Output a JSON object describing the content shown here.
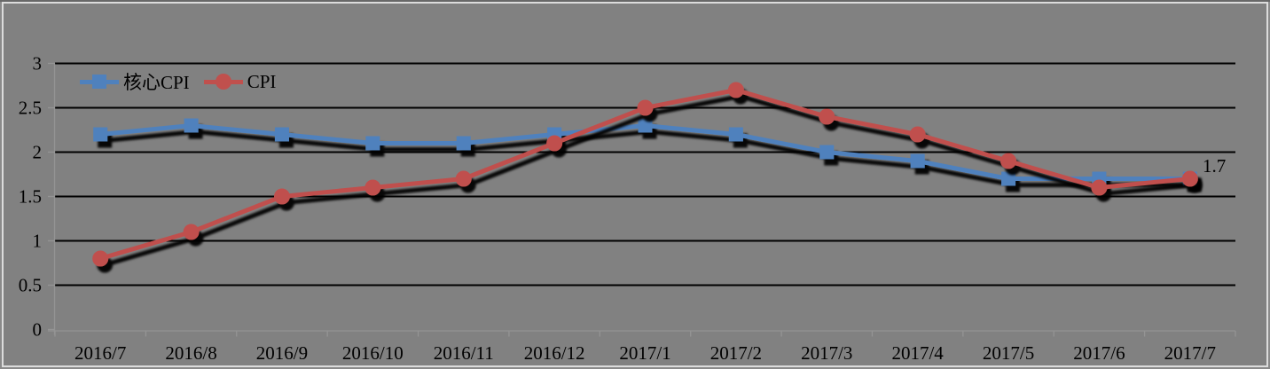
{
  "chart_data": {
    "type": "line",
    "title": "",
    "xlabel": "",
    "ylabel": "",
    "categories": [
      "2016/7",
      "2016/8",
      "2016/9",
      "2016/10",
      "2016/11",
      "2016/12",
      "2017/1",
      "2017/2",
      "2017/3",
      "2017/4",
      "2017/5",
      "2017/6",
      "2017/7"
    ],
    "series": [
      {
        "name": "核心CPI",
        "color": "#4f81bd",
        "marker": "square",
        "values": [
          2.2,
          2.3,
          2.2,
          2.1,
          2.1,
          2.2,
          2.3,
          2.2,
          2.0,
          1.9,
          1.7,
          1.7,
          1.7
        ]
      },
      {
        "name": "CPI",
        "color": "#c0504d",
        "marker": "circle",
        "values": [
          0.8,
          1.1,
          1.5,
          1.6,
          1.7,
          2.1,
          2.5,
          2.7,
          2.4,
          2.2,
          1.9,
          1.6,
          1.7
        ]
      }
    ],
    "y_ticks": [
      0,
      0.5,
      1,
      1.5,
      2,
      2.5,
      3
    ],
    "ylim": [
      0,
      3
    ],
    "grid": "horizontal",
    "legend_position": "top-left",
    "end_label": "1.7",
    "colors": {
      "background": "#818181",
      "gridline": "#000000",
      "axis": "#949494",
      "text": "#000000",
      "shadow": "#000000"
    }
  }
}
